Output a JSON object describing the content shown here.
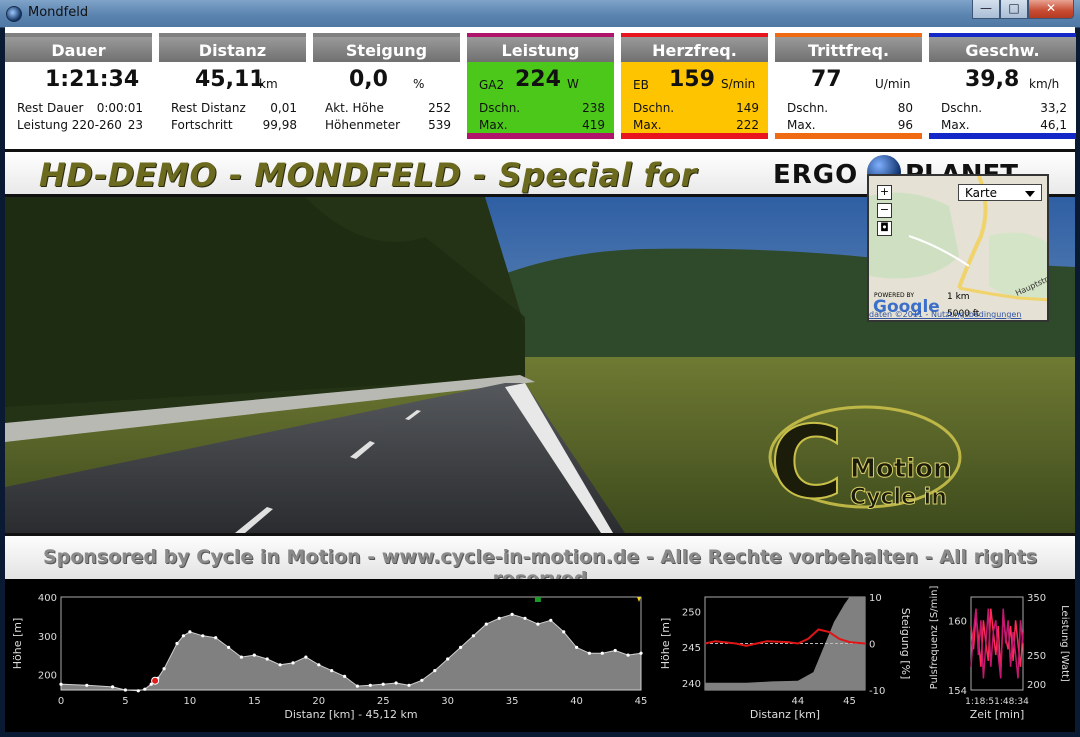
{
  "window": {
    "title": "Mondfeld",
    "min_glyph": "—",
    "max_glyph": "□",
    "close_glyph": "✕"
  },
  "metrics": [
    {
      "key": "dauer",
      "label": "Dauer",
      "value": "1:21:34",
      "unit": "",
      "prefix": "",
      "rows": [
        {
          "label": "Rest Dauer",
          "value": "0:00:01"
        },
        {
          "label": "Leistung 220-260",
          "value": "23"
        }
      ],
      "header_color": "#808080",
      "body_color": "#ffffff",
      "bar_color": "#ffffff"
    },
    {
      "key": "distanz",
      "label": "Distanz",
      "value": "45,11",
      "unit": "km",
      "prefix": "",
      "rows": [
        {
          "label": "Rest Distanz",
          "value": "0,01"
        },
        {
          "label": "Fortschritt",
          "value": "99,98"
        }
      ],
      "header_color": "#808080",
      "body_color": "#ffffff",
      "bar_color": "#ffffff"
    },
    {
      "key": "steigung",
      "label": "Steigung",
      "value": "0,0",
      "unit": "%",
      "prefix": "",
      "rows": [
        {
          "label": "Akt. Höhe",
          "value": "252"
        },
        {
          "label": "Höhenmeter",
          "value": "539"
        }
      ],
      "header_color": "#808080",
      "body_color": "#ffffff",
      "bar_color": "#ffffff"
    },
    {
      "key": "leistung",
      "label": "Leistung",
      "value": "224",
      "unit": "W",
      "prefix": "GA2",
      "rows": [
        {
          "label": "Dschn.",
          "value": "238"
        },
        {
          "label": "Max.",
          "value": "419"
        }
      ],
      "header_color": "#b0146a",
      "body_color": "#4cc81a",
      "bar_color": "#b0146a"
    },
    {
      "key": "herzfreq",
      "label": "Herzfreq.",
      "value": "159",
      "unit": "S/min",
      "prefix": "EB",
      "rows": [
        {
          "label": "Dschn.",
          "value": "149"
        },
        {
          "label": "Max.",
          "value": "222"
        }
      ],
      "header_color": "#e8141e",
      "body_color": "#ffc400",
      "bar_color": "#e8141e"
    },
    {
      "key": "trittfreq",
      "label": "Trittfreq.",
      "value": "77",
      "unit": "U/min",
      "prefix": "",
      "rows": [
        {
          "label": "Dschn.",
          "value": "80"
        },
        {
          "label": "Max.",
          "value": "96"
        }
      ],
      "header_color": "#f06a14",
      "body_color": "#ffffff",
      "bar_color": "#f06a14"
    },
    {
      "key": "geschw",
      "label": "Geschw.",
      "value": "39,8",
      "unit": "km/h",
      "prefix": "",
      "rows": [
        {
          "label": "Dschn.",
          "value": "33,2"
        },
        {
          "label": "Max.",
          "value": "46,1"
        }
      ],
      "header_color": "#1428c8",
      "body_color": "#ffffff",
      "bar_color": "#1428c8"
    }
  ],
  "banner_top": {
    "text": "HD-DEMO - MONDFELD - Special for",
    "logo_left": "ERGO",
    "logo_right": "PLANET"
  },
  "map": {
    "zoom_in": "+",
    "zoom_out": "−",
    "center": "◘",
    "type_select": "Karte",
    "powered": "POWERED BY",
    "google": "Google",
    "scale_km": "1 km",
    "scale_ft": "5000 ft",
    "terms": "daten ©2011 - Nutzungsbedingungen",
    "road_label": "Hauptstr"
  },
  "video_logo": {
    "line1": "Motion",
    "line2": "Cycle in",
    "letter": "C"
  },
  "banner_bottom": {
    "text": "Sponsored by Cycle in Motion - www.cycle-in-motion.de - Alle Rechte vorbehalten - All rights reserved"
  },
  "chart_data": [
    {
      "type": "area",
      "name": "profile",
      "ylabel": "Höhe [m]",
      "xlabel": "Distanz [km] - 45,12 km",
      "xlim": [
        0,
        45
      ],
      "ylim": [
        160,
        400
      ],
      "xticks": [
        0,
        5,
        10,
        15,
        20,
        25,
        30,
        35,
        40,
        45
      ],
      "yticks": [
        200,
        300,
        400
      ],
      "x": [
        0,
        2,
        4,
        5,
        6,
        6.5,
        7,
        7.5,
        8,
        9,
        9.5,
        10,
        11,
        12,
        13,
        14,
        15,
        16,
        17,
        18,
        19,
        20,
        21,
        22,
        23,
        24,
        25,
        26,
        27,
        28,
        29,
        30,
        31,
        32,
        33,
        34,
        35,
        36,
        37,
        38,
        39,
        40,
        41,
        42,
        43,
        44,
        45
      ],
      "y": [
        175,
        172,
        168,
        160,
        158,
        162,
        175,
        190,
        215,
        280,
        300,
        310,
        300,
        295,
        270,
        245,
        250,
        240,
        225,
        230,
        245,
        225,
        210,
        195,
        170,
        172,
        175,
        178,
        172,
        185,
        210,
        240,
        270,
        300,
        330,
        345,
        355,
        345,
        330,
        340,
        310,
        270,
        255,
        255,
        262,
        250,
        255
      ],
      "current_position_km": 7.3,
      "marker_end_km": 37
    },
    {
      "type": "line",
      "name": "detail",
      "ylabel": "Höhe [m]",
      "y2label": "Steigung [%]",
      "xlabel": "Distanz [km]",
      "xlim": [
        42.2,
        45.3
      ],
      "ylim": [
        239,
        252
      ],
      "y2lim": [
        -10,
        10
      ],
      "xticks": [
        44,
        45
      ],
      "yticks": [
        240,
        245,
        250
      ],
      "y2ticks": [
        10,
        0,
        -10
      ],
      "elevation_x": [
        42.2,
        42.5,
        43,
        43.5,
        44,
        44.3,
        44.5,
        44.7,
        44.9,
        45,
        45.1,
        45.3
      ],
      "elevation_y": [
        240,
        240,
        240,
        240.2,
        240.3,
        241.5,
        245,
        248.5,
        251,
        252,
        252,
        252
      ],
      "gradient_x": [
        42.2,
        42.4,
        42.8,
        43,
        43.4,
        43.8,
        44,
        44.2,
        44.4,
        44.6,
        44.8,
        45,
        45.3
      ],
      "gradient_y": [
        0,
        0.5,
        0,
        -0.5,
        0.5,
        0.3,
        0,
        1,
        3,
        2.5,
        1,
        0.3,
        0
      ]
    },
    {
      "type": "line",
      "name": "hr_power",
      "ylabel": "Pulsfrequenz [S/min]",
      "y2label": "Leistung [Watt]",
      "xlabel": "Zeit [min]",
      "ylim": [
        154,
        162
      ],
      "y2lim": [
        190,
        350
      ],
      "yticks": [
        154,
        160
      ],
      "y2ticks": [
        200,
        250,
        350
      ],
      "tick_label": "1:18:51:48:34",
      "hr": [
        156,
        159,
        161,
        157,
        160,
        155,
        158,
        161,
        156,
        159,
        160,
        157,
        155,
        161,
        158,
        160,
        156,
        159,
        157,
        155,
        160,
        158
      ],
      "power": [
        300,
        260,
        320,
        280,
        230,
        310,
        270,
        240,
        330,
        290,
        250,
        300,
        220,
        320,
        280,
        260,
        300,
        240,
        310,
        270,
        230,
        290
      ]
    }
  ]
}
